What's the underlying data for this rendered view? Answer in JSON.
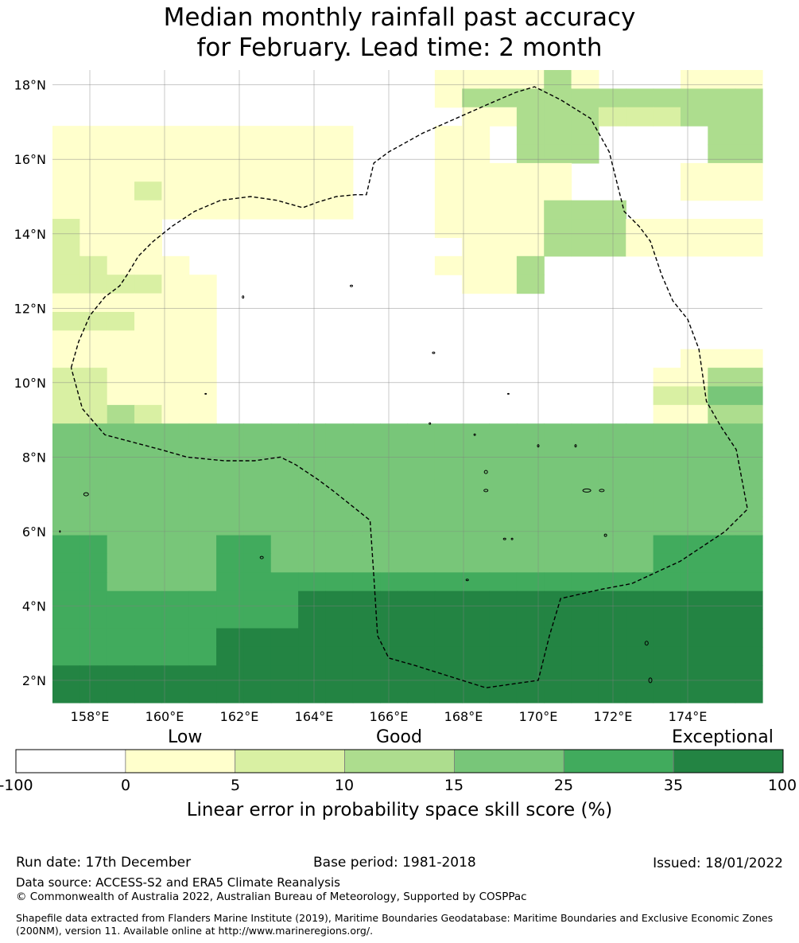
{
  "title": {
    "line1": "Median monthly rainfall past accuracy",
    "line2": "for February. Lead time: 2 month"
  },
  "map": {
    "lon_range": [
      157.0,
      176.0
    ],
    "lat_range": [
      1.4,
      18.4
    ],
    "lon_ticks": [
      "158°E",
      "160°E",
      "162°E",
      "164°E",
      "166°E",
      "168°E",
      "170°E",
      "172°E",
      "174°E"
    ],
    "lat_ticks": [
      "2°N",
      "4°N",
      "6°N",
      "8°N",
      "10°N",
      "12°N",
      "14°N",
      "16°N",
      "18°N"
    ],
    "skill_classes": {
      "0": "below 0 (no skill)",
      "1": "0-5",
      "2": "5-10",
      "3": "10-15",
      "4": "15-25",
      "5": "25-35",
      "6": "35-100"
    },
    "class_colors": [
      "#ffffff",
      "#ffffcc",
      "#d9f0a3",
      "#addd8e",
      "#78c679",
      "#41ab5d",
      "#238443"
    ],
    "grid_rows_north_to_south": [
      "00000000000000111131000111",
      "00000000000000133333333333",
      "00000000000000011333222333",
      "11111111111000110333000033",
      "11111111111000110333000033",
      "11111111111000111110000111",
      "11121111111000111110000111",
      "11111111111000111133300000",
      "21110000000000111133311111",
      "21110000000000011133311111",
      "22111000000000111300000000",
      "22221100000000011300000000",
      "11111100000000000000000000",
      "22211100000000000000000000",
      "11111100000000000000000000",
      "11111100000000000000000111",
      "22111100000000000000001133",
      "22111100000000000000002244",
      "22321100000000000000001133",
      "44444444444444444444444444",
      "44444444444444444444444444",
      "44444444444444444444444444",
      "44444444444444444444444444",
      "44444444444444444444444444",
      "44444444444444444444444444",
      "55444455444444444444445555",
      "55444455444444444444445555",
      "55444455555555555555555555",
      "55555555566666666666666666",
      "55555555566666666666666666",
      "55555566666666666666666666",
      "55555566666666666666666666",
      "66666666666666666666666666",
      "66666666666666666666666666"
    ],
    "eez_boundary_lonlat": [
      [
        157.5,
        10.4
      ],
      [
        157.7,
        11.1
      ],
      [
        158.0,
        11.8
      ],
      [
        158.4,
        12.3
      ],
      [
        158.8,
        12.6
      ],
      [
        159.0,
        12.9
      ],
      [
        159.3,
        13.4
      ],
      [
        159.7,
        13.8
      ],
      [
        160.2,
        14.2
      ],
      [
        160.8,
        14.6
      ],
      [
        161.5,
        14.9
      ],
      [
        162.3,
        15.0
      ],
      [
        163.0,
        14.9
      ],
      [
        163.7,
        14.7
      ],
      [
        164.1,
        14.85
      ],
      [
        164.6,
        15.0
      ],
      [
        165.1,
        15.05
      ],
      [
        165.4,
        15.05
      ],
      [
        165.6,
        15.9
      ],
      [
        166.0,
        16.2
      ],
      [
        166.9,
        16.7
      ],
      [
        167.8,
        17.1
      ],
      [
        168.7,
        17.5
      ],
      [
        169.4,
        17.8
      ],
      [
        169.9,
        17.95
      ],
      [
        170.6,
        17.6
      ],
      [
        171.4,
        17.1
      ],
      [
        171.9,
        16.2
      ],
      [
        172.3,
        14.6
      ],
      [
        172.7,
        14.2
      ],
      [
        173.0,
        13.8
      ],
      [
        173.3,
        12.9
      ],
      [
        173.6,
        12.2
      ],
      [
        174.0,
        11.7
      ],
      [
        174.3,
        10.9
      ],
      [
        174.5,
        9.5
      ],
      [
        174.9,
        8.8
      ],
      [
        175.3,
        8.2
      ],
      [
        175.6,
        6.6
      ],
      [
        175.0,
        6.0
      ],
      [
        173.8,
        5.2
      ],
      [
        172.5,
        4.6
      ],
      [
        171.7,
        4.45
      ],
      [
        170.6,
        4.2
      ],
      [
        170.3,
        3.2
      ],
      [
        170.0,
        2.0
      ],
      [
        168.6,
        1.8
      ],
      [
        166.7,
        2.4
      ],
      [
        166.0,
        2.6
      ],
      [
        165.7,
        3.2
      ],
      [
        165.6,
        4.8
      ],
      [
        165.5,
        6.3
      ],
      [
        164.5,
        7.1
      ],
      [
        164.1,
        7.4
      ],
      [
        163.5,
        7.8
      ],
      [
        163.1,
        8.0
      ],
      [
        162.4,
        7.9
      ],
      [
        161.6,
        7.9
      ],
      [
        160.6,
        8.0
      ],
      [
        159.9,
        8.2
      ],
      [
        158.4,
        8.6
      ],
      [
        157.8,
        9.3
      ],
      [
        157.5,
        10.4
      ]
    ]
  },
  "colorbar": {
    "category_labels": [
      "Low",
      "Good",
      "Exceptional"
    ],
    "ticks": [
      "-100",
      "0",
      "5",
      "10",
      "15",
      "25",
      "35",
      "100"
    ],
    "colors": [
      "#ffffff",
      "#ffffcc",
      "#d9f0a3",
      "#addd8e",
      "#78c679",
      "#41ab5d",
      "#238443"
    ],
    "axis_label": "Linear error in probability space skill score (%)"
  },
  "footer": {
    "run_date": "Run date: 17th December",
    "base_period": "Base period: 1981-2018",
    "issued": "Issued: 18/01/2022",
    "data_source": "Data source: ACCESS-S2 and ERA5 Climate Reanalysis",
    "copyright": "© Commonwealth of Australia 2022, Australian Bureau of Meteorology, Supported by COSPPac",
    "shapefile": "Shapefile data extracted from Flanders Marine Institute (2019), Maritime Boundaries Geodatabase: Maritime Boundaries and Exclusive Economic Zones (200NM), version 11. Available online at http://www.marineregions.org/."
  }
}
